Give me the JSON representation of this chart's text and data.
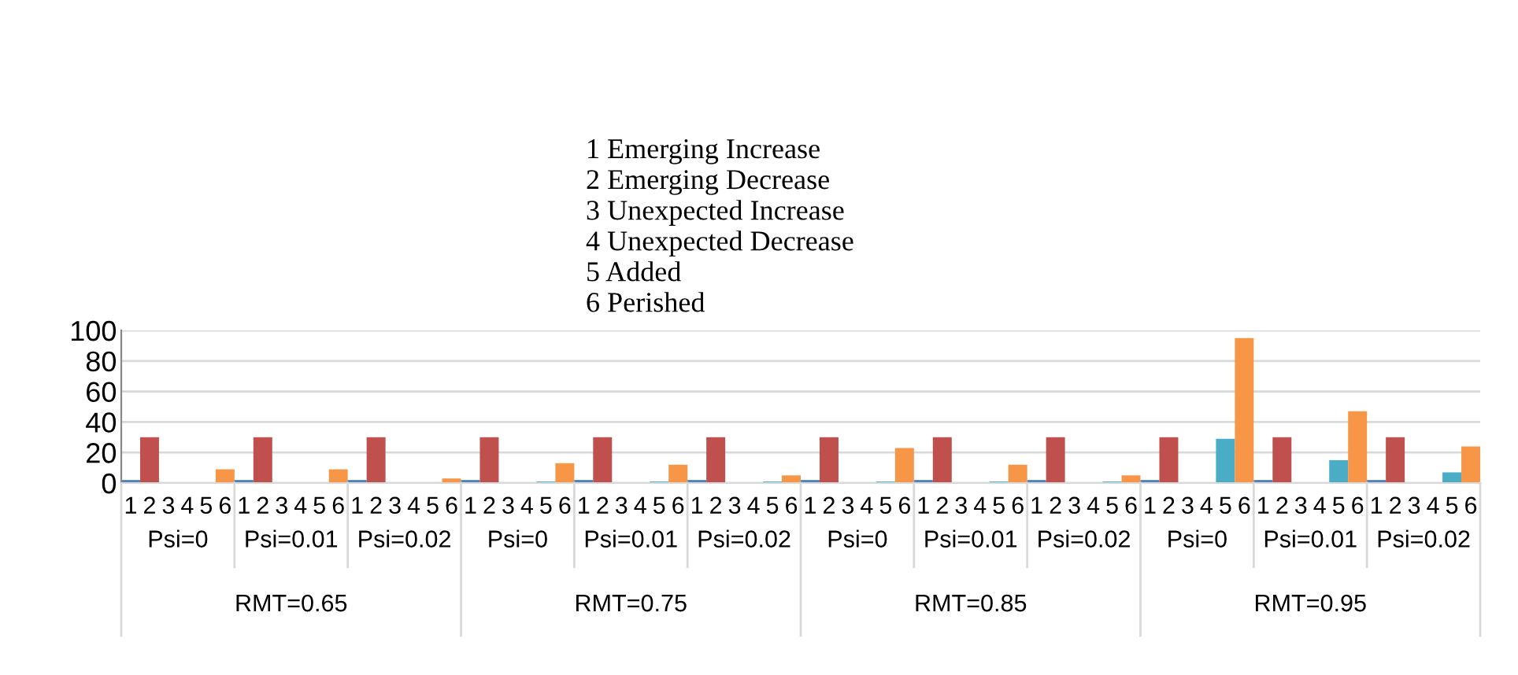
{
  "chart_data": {
    "type": "bar",
    "categories": [
      "1",
      "2",
      "3",
      "4",
      "5",
      "6",
      "1",
      "2",
      "3",
      "4",
      "5",
      "6",
      "1",
      "2",
      "3",
      "4",
      "5",
      "6",
      "1",
      "2",
      "3",
      "4",
      "5",
      "6",
      "1",
      "2",
      "3",
      "4",
      "5",
      "6",
      "1",
      "2",
      "3",
      "4",
      "5",
      "6",
      "1",
      "2",
      "3",
      "4",
      "5",
      "6",
      "1",
      "2",
      "3",
      "4",
      "5",
      "6",
      "1",
      "2",
      "3",
      "4",
      "5",
      "6",
      "1",
      "2",
      "3",
      "4",
      "5",
      "6",
      "1",
      "2",
      "3",
      "4",
      "5",
      "6",
      "1",
      "2",
      "3",
      "4",
      "5",
      "6"
    ],
    "values": [
      2,
      30,
      null,
      null,
      0,
      9,
      2,
      30,
      null,
      null,
      0,
      9,
      2,
      30,
      null,
      null,
      0,
      3,
      2,
      30,
      null,
      null,
      1,
      13,
      2,
      30,
      null,
      null,
      1,
      12,
      2,
      30,
      null,
      null,
      1,
      5,
      2,
      30,
      null,
      null,
      1,
      23,
      2,
      30,
      null,
      null,
      1,
      12,
      2,
      30,
      null,
      null,
      1,
      5,
      2,
      30,
      null,
      null,
      29,
      95,
      2,
      30,
      null,
      null,
      15,
      47,
      2,
      30,
      null,
      null,
      7,
      24
    ],
    "colors": [
      "#4f81bd",
      "#c0504d",
      "#4bacc6",
      "#4bacc6",
      "#4bacc6",
      "#f79646",
      "#4f81bd",
      "#c0504d",
      "#4bacc6",
      "#4bacc6",
      "#4bacc6",
      "#f79646",
      "#4f81bd",
      "#c0504d",
      "#4bacc6",
      "#4bacc6",
      "#4bacc6",
      "#f79646",
      "#4f81bd",
      "#c0504d",
      "#4bacc6",
      "#4bacc6",
      "#4bacc6",
      "#f79646",
      "#4f81bd",
      "#c0504d",
      "#4bacc6",
      "#4bacc6",
      "#4bacc6",
      "#f79646",
      "#4f81bd",
      "#c0504d",
      "#4bacc6",
      "#4bacc6",
      "#4bacc6",
      "#f79646",
      "#4f81bd",
      "#c0504d",
      "#4bacc6",
      "#4bacc6",
      "#4bacc6",
      "#f79646",
      "#4f81bd",
      "#c0504d",
      "#4bacc6",
      "#4bacc6",
      "#4bacc6",
      "#f79646",
      "#4f81bd",
      "#c0504d",
      "#4bacc6",
      "#4bacc6",
      "#4bacc6",
      "#f79646",
      "#4f81bd",
      "#c0504d",
      "#4bacc6",
      "#4bacc6",
      "#4bacc6",
      "#f79646",
      "#4f81bd",
      "#c0504d",
      "#4bacc6",
      "#4bacc6",
      "#4bacc6",
      "#f79646",
      "#4f81bd",
      "#c0504d",
      "#4bacc6",
      "#4bacc6",
      "#4bacc6",
      "#f79646"
    ],
    "ylim": [
      0,
      100
    ],
    "yticks": [
      0,
      20,
      40,
      60,
      80,
      100
    ],
    "grid": "y",
    "annotations": [
      "1 Emerging Increase",
      "2 Emerging Decrease",
      "3 Unexpected Increase",
      "4 Unexpected Decrease",
      "5 Added",
      "6 Perished",
      "Psi=0",
      "Psi=0.01",
      "Psi=0.02",
      "Psi=0",
      "Psi=0.01",
      "Psi=0.02",
      "Psi=0",
      "Psi=0.01",
      "Psi=0.02",
      "Psi=0",
      "Psi=0.01",
      "Psi=0.02",
      "RMT=0.65",
      "RMT=0.75",
      "RMT=0.85",
      "RMT=0.95"
    ]
  }
}
